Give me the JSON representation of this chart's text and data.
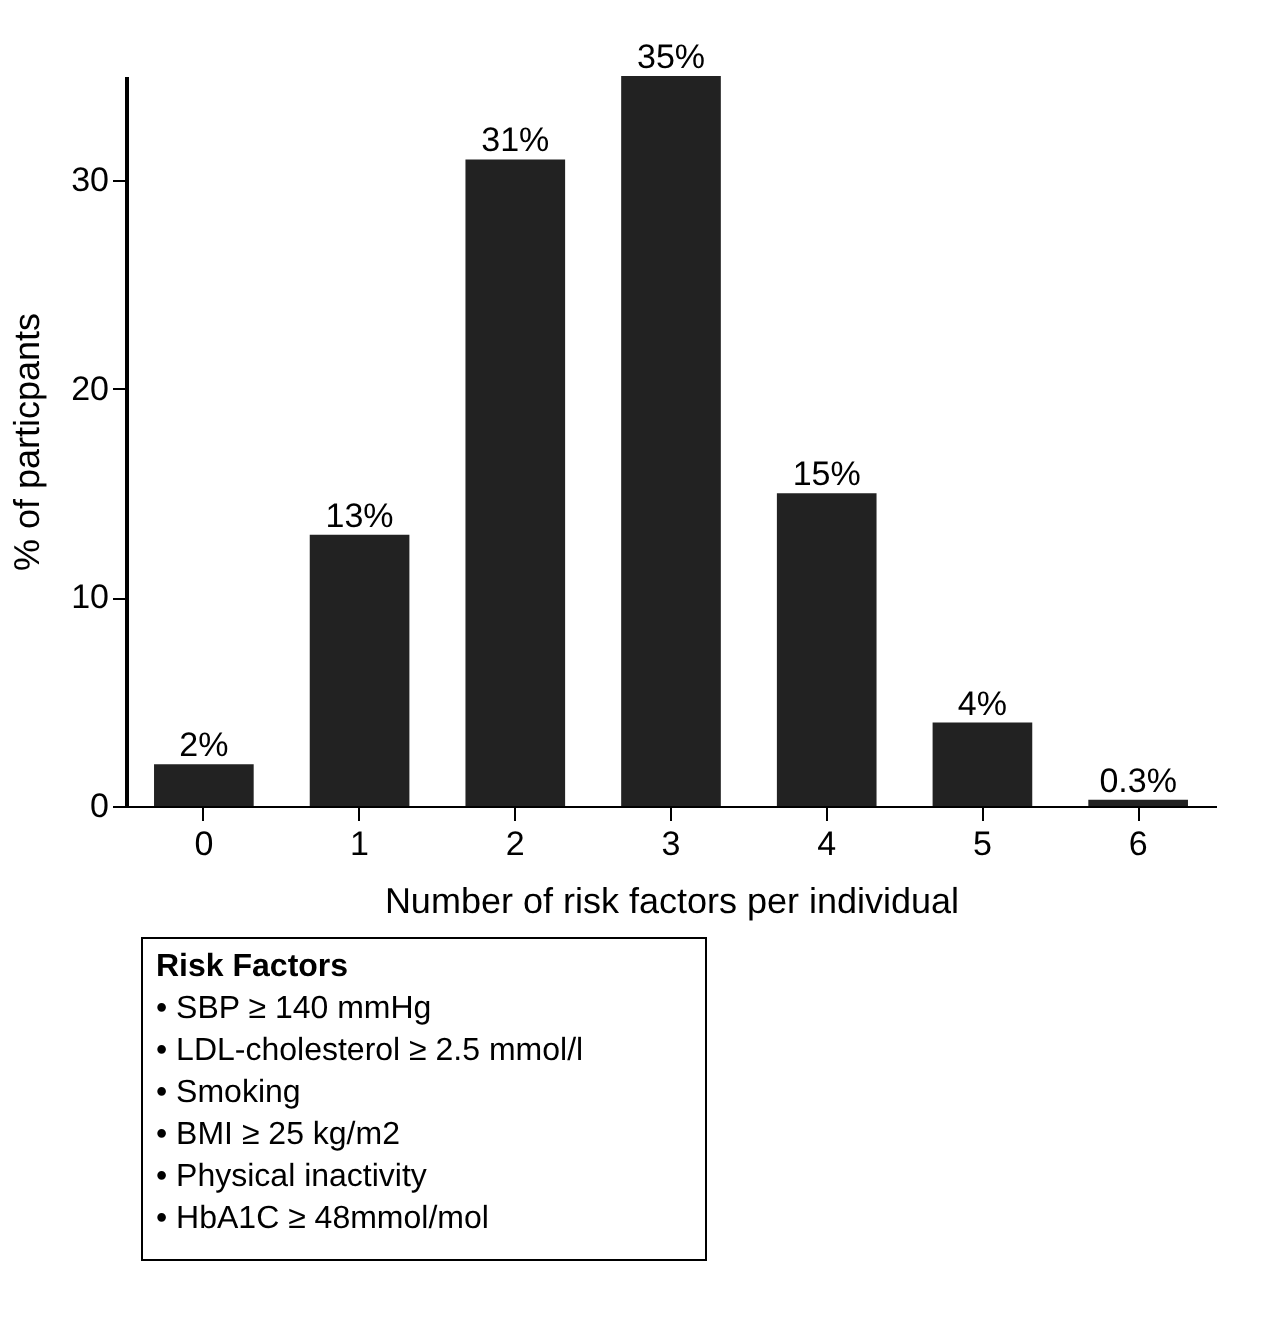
{
  "chart_data": {
    "type": "bar",
    "xlabel": "Number of risk factors per individual",
    "ylabel": "% of particpants",
    "categories": [
      "0",
      "1",
      "2",
      "3",
      "4",
      "5",
      "6"
    ],
    "values": [
      2,
      13,
      31,
      35,
      15,
      4,
      0.3
    ],
    "value_labels": [
      "2%",
      "13%",
      "31%",
      "35%",
      "15%",
      "4%",
      "0.3%"
    ],
    "color": "#222222",
    "ylim": [
      0,
      35
    ],
    "yticks": [
      0,
      10,
      20,
      30
    ],
    "grid": false,
    "annotations": [
      "Risk Factors",
      "• SBP ≥ 140 mmHg",
      "• LDL-cholesterol ≥ 2.5 mmol/l",
      "• Smoking",
      "• BMI ≥ 25 kg/m2",
      "• Physical inactivity",
      "• HbA1C ≥ 48mmol/mol"
    ]
  }
}
